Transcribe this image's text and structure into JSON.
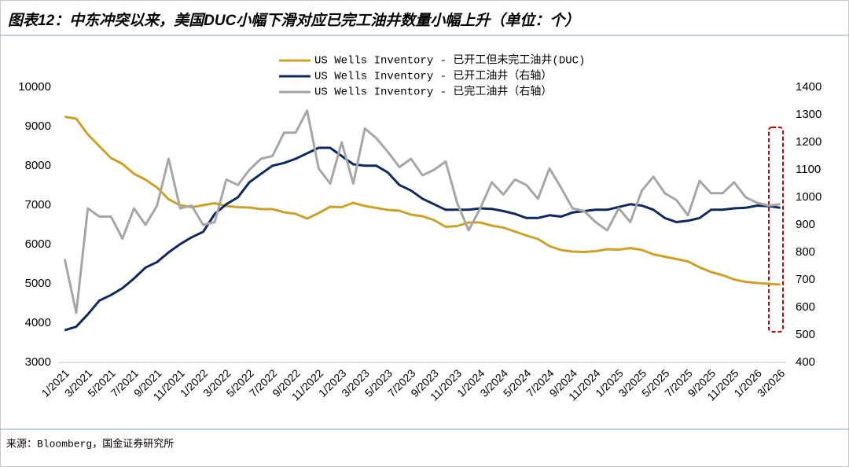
{
  "chart_data": {
    "type": "line",
    "title": "图表12：中东冲突以来，美国DUC小幅下滑对应已完工油井数量小幅上升（单位：个）",
    "source": "来源：Bloomberg，国金证券研究所",
    "categories": [
      "1/2021",
      null,
      "3/2021",
      null,
      "5/2021",
      null,
      "7/2021",
      null,
      "9/2021",
      null,
      "11/2021",
      null,
      "1/2022",
      null,
      "3/2022",
      null,
      "5/2022",
      null,
      "7/2022",
      null,
      "9/2022",
      null,
      "11/2022",
      null,
      "1/2023",
      null,
      "3/2023",
      null,
      "5/2023",
      null,
      "7/2023",
      null,
      "9/2023",
      null,
      "11/2023",
      null,
      "1/2024",
      null,
      "3/2024",
      null,
      "5/2024",
      null,
      "7/2024",
      null,
      "9/2024",
      null,
      "11/2024",
      null,
      "1/2025",
      null,
      "3/2025",
      null,
      "5/2025",
      null,
      "7/2025",
      null,
      "9/2025",
      null,
      "11/2025",
      null,
      "1/2026",
      null,
      "3/2026"
    ],
    "series": [
      {
        "name": "US Wells Inventory - 已开工但未完工油井(DUC)",
        "color": "#c9a227",
        "values": [
          9250,
          9200,
          8800,
          8500,
          8200,
          8050,
          7800,
          7650,
          7450,
          7150,
          7000,
          6950,
          7000,
          7050,
          6980,
          6950,
          6940,
          6900,
          6900,
          6820,
          6780,
          6660,
          6800,
          6960,
          6950,
          7060,
          6980,
          6930,
          6880,
          6860,
          6760,
          6720,
          6620,
          6450,
          6470,
          6560,
          6560,
          6480,
          6430,
          6330,
          6230,
          6140,
          5960,
          5860,
          5820,
          5810,
          5830,
          5880,
          5870,
          5910,
          5860,
          5750,
          5690,
          5630,
          5570,
          5420,
          5300,
          5220,
          5110,
          5050,
          5020,
          5000,
          4980
        ]
      },
      {
        "name": "US Wells Inventory - 已开工油井（右轴）",
        "color": "#0e2a5c",
        "axis": "y2",
        "values": [
          517,
          530,
          575,
          625,
          645,
          670,
          705,
          745,
          765,
          800,
          830,
          855,
          875,
          940,
          975,
          1000,
          1055,
          1085,
          1115,
          1125,
          1140,
          1160,
          1180,
          1180,
          1150,
          1120,
          1115,
          1115,
          1090,
          1045,
          1025,
          995,
          975,
          955,
          955,
          955,
          960,
          958,
          950,
          940,
          925,
          925,
          935,
          930,
          945,
          950,
          955,
          955,
          965,
          975,
          970,
          955,
          925,
          910,
          915,
          925,
          955,
          955,
          960,
          962,
          970,
          968,
          962
        ]
      },
      {
        "name": "US Wells Inventory - 已完工油井（右轴）",
        "color": "#a6a6a6",
        "axis": "y2",
        "values": [
          776,
          580,
          960,
          930,
          930,
          850,
          960,
          900,
          970,
          1140,
          960,
          970,
          900,
          910,
          1065,
          1045,
          1100,
          1140,
          1150,
          1235,
          1235,
          1315,
          1105,
          1050,
          1200,
          1050,
          1250,
          1215,
          1165,
          1110,
          1140,
          1080,
          1100,
          1130,
          980,
          880,
          960,
          1055,
          1010,
          1065,
          1045,
          995,
          1105,
          1035,
          960,
          950,
          910,
          880,
          960,
          910,
          1025,
          1075,
          1015,
          990,
          935,
          1060,
          1015,
          1015,
          1055,
          1000,
          980,
          970,
          975
        ]
      }
    ],
    "ylim": [
      3000,
      10000
    ],
    "yticks": [
      3000,
      4000,
      5000,
      6000,
      7000,
      8000,
      9000,
      10000
    ],
    "y2lim": [
      400,
      1400
    ],
    "y2ticks": [
      400,
      500,
      600,
      700,
      800,
      900,
      1000,
      1100,
      1200,
      1300,
      1400
    ]
  }
}
